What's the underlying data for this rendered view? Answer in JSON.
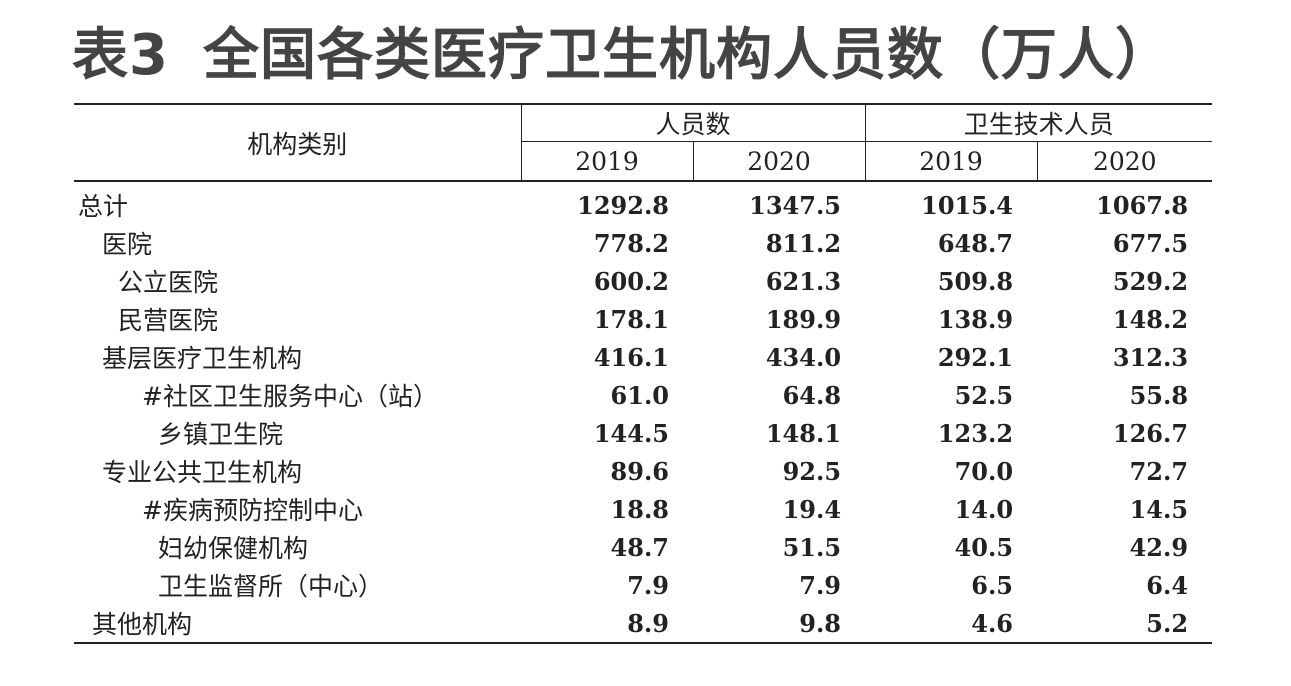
{
  "title": {
    "table_no": "表3",
    "text": "全国各类医疗卫生机构人员数（万人）"
  },
  "header": {
    "category": "机构类别",
    "group_staff": "人员数",
    "group_tech": "卫生技术人员",
    "years": [
      "2019",
      "2020",
      "2019",
      "2020"
    ]
  },
  "rows": [
    {
      "name": "总计",
      "level": "lvl0",
      "values": [
        "1292.8",
        "1347.5",
        "1015.4",
        "1067.8"
      ]
    },
    {
      "name": "医院",
      "level": "lvl1",
      "values": [
        "778.2",
        "811.2",
        "648.7",
        "677.5"
      ]
    },
    {
      "name": "公立医院",
      "level": "lvl2",
      "values": [
        "600.2",
        "621.3",
        "509.8",
        "529.2"
      ]
    },
    {
      "name": "民营医院",
      "level": "lvl2",
      "values": [
        "178.1",
        "189.9",
        "138.9",
        "148.2"
      ]
    },
    {
      "name": "基层医疗卫生机构",
      "level": "lvl1",
      "values": [
        "416.1",
        "434.0",
        "292.1",
        "312.3"
      ]
    },
    {
      "name": "#社区卫生服务中心（站）",
      "level": "lvl3",
      "values": [
        "61.0",
        "64.8",
        "52.5",
        "55.8"
      ]
    },
    {
      "name": "乡镇卫生院",
      "level": "lvl3b",
      "values": [
        "144.5",
        "148.1",
        "123.2",
        "126.7"
      ]
    },
    {
      "name": "专业公共卫生机构",
      "level": "lvl1",
      "values": [
        "89.6",
        "92.5",
        "70.0",
        "72.7"
      ]
    },
    {
      "name": "#疾病预防控制中心",
      "level": "lvl3",
      "values": [
        "18.8",
        "19.4",
        "14.0",
        "14.5"
      ]
    },
    {
      "name": "妇幼保健机构",
      "level": "lvl3b",
      "values": [
        "48.7",
        "51.5",
        "40.5",
        "42.9"
      ]
    },
    {
      "name": "卫生监督所（中心）",
      "level": "lvl3b",
      "values": [
        "7.9",
        "7.9",
        "6.5",
        "6.4"
      ]
    },
    {
      "name": "其他机构",
      "level": "lvl0b",
      "values": [
        "8.9",
        "9.8",
        "4.6",
        "5.2"
      ]
    }
  ]
}
